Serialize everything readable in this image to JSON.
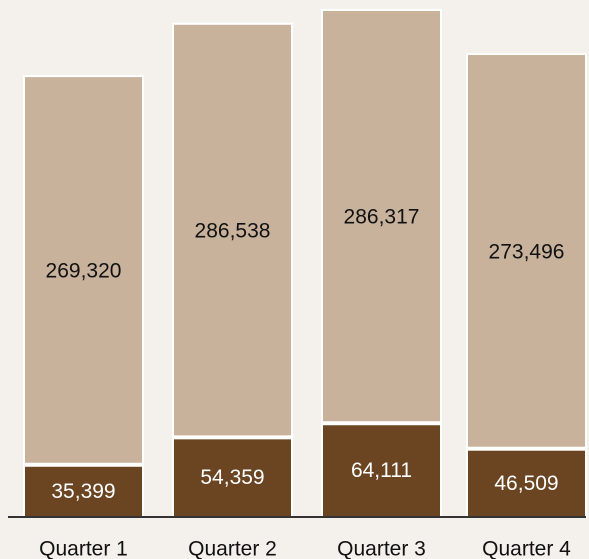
{
  "chart_data": {
    "type": "bar",
    "stacked": true,
    "categories": [
      "Quarter 1",
      "Quarter 2",
      "Quarter 3",
      "Quarter 4"
    ],
    "series": [
      {
        "values": [
          35399,
          54359,
          64111,
          46509
        ],
        "color": "#6b4522"
      },
      {
        "values": [
          269320,
          286538,
          286317,
          273496
        ],
        "color": "#c8b29c"
      }
    ],
    "title": "",
    "xlabel": "",
    "ylabel": "",
    "ylim": [
      0,
      350428
    ],
    "grid": false,
    "legend": "none",
    "text_colors": {
      "dark_segment_label": "#ffffff",
      "light_segment_label": "#111111",
      "tick_label": "#111111",
      "baseline": "#333333",
      "bar_border": "#ffffff",
      "background": "#f7f5f2"
    }
  }
}
